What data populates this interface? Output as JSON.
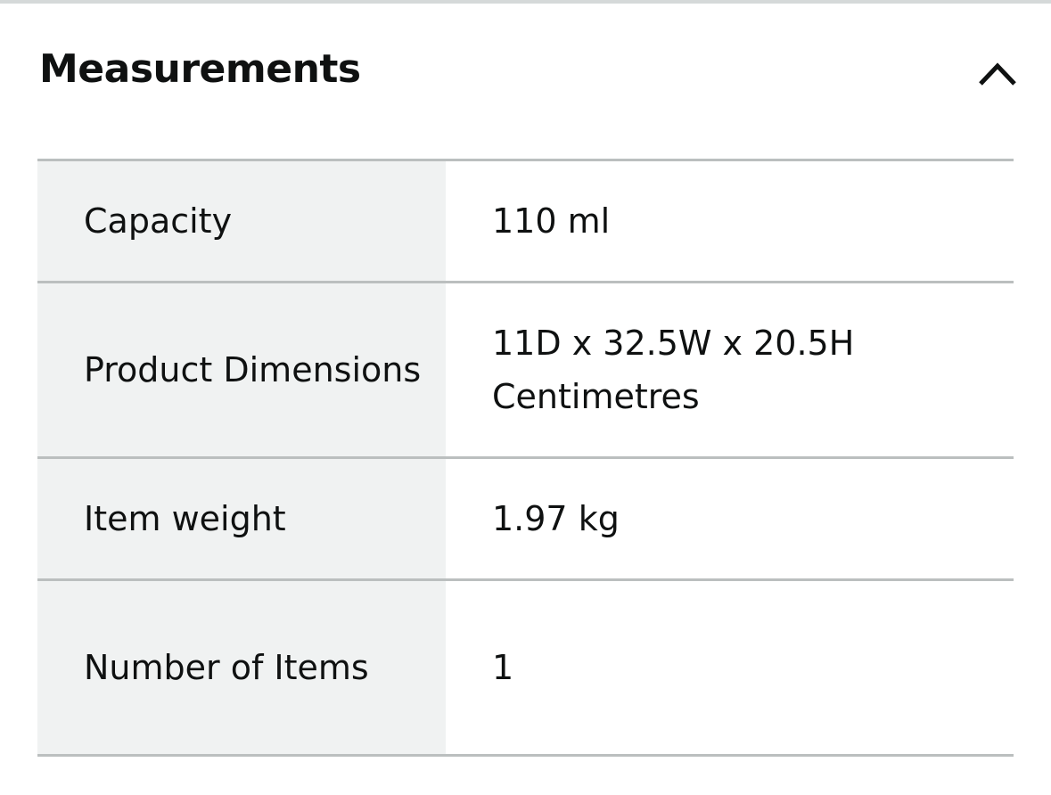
{
  "section": {
    "title": "Measurements",
    "toggle_icon": "chevron-up-icon",
    "expanded": true
  },
  "rows": [
    {
      "label": "Capacity",
      "value": "110 ml"
    },
    {
      "label": "Product Dimensions",
      "value": "11D x 32.5W x 20.5H Centimetres"
    },
    {
      "label": "Item weight",
      "value": "1.97 kg"
    },
    {
      "label": "Number of Items",
      "value": "1"
    }
  ],
  "colors": {
    "label_bg": "#f0f2f2",
    "border": "#bbbfbf",
    "text": "#0f1111"
  }
}
